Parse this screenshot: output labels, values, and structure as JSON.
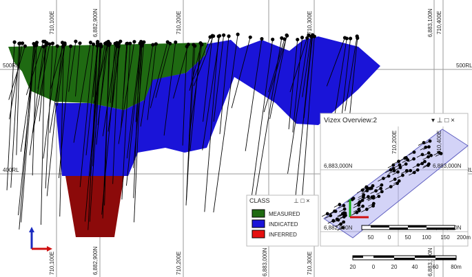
{
  "main_view": {
    "grid_labels_top": [
      "710,100E",
      "6,882,900N",
      "710,200E",
      "710,300E",
      "6,883,100N",
      "710,400E"
    ],
    "grid_labels_bottom": [
      "710,100E",
      "6,882,900N",
      "710,200E",
      "6,883,000N",
      "710,300E",
      "6,883,100N"
    ],
    "rl_labels": [
      "500RL",
      "500RL",
      "400RL",
      "RL"
    ],
    "scale_bar": [
      "20",
      "0",
      "20",
      "40",
      "60",
      "80m"
    ]
  },
  "legend": {
    "title": "CLASS",
    "items": [
      "MEASURED",
      "INDICATED",
      "INFERRED"
    ]
  },
  "overview": {
    "title": "Vizex Overview:2",
    "grid_labels": [
      "710,200E",
      "710,400E",
      "6,883,000N",
      "6,883,000N",
      "6,882,800N",
      "6,882,800N"
    ],
    "scale_bar": [
      "50",
      "0",
      "50",
      "100",
      "150",
      "200m"
    ]
  }
}
